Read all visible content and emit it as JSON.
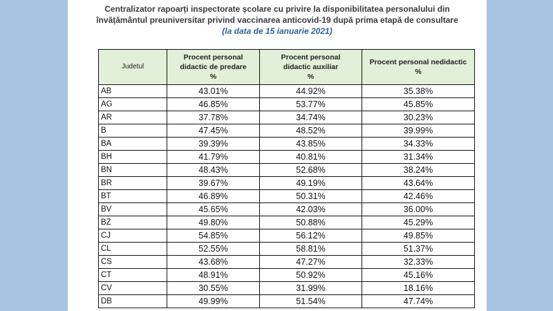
{
  "document": {
    "title_line1": "Centralizator rapoarți inspectorate școlare cu privire la disponibilitatea personalului din",
    "title_line2": "învățământul preuniversitar privind vaccinarea anticovid-19 după prima etapă de consultare",
    "date_line": "(la data de 15 ianuarie 2021)"
  },
  "table": {
    "headers": {
      "judet": "Judetul",
      "col1": [
        "Procent personal",
        "didactic de predare",
        "%"
      ],
      "col2": [
        "Procent personal",
        "didactic auxiliar",
        "%"
      ],
      "col3": [
        "Procent personal nedidactic",
        "%"
      ]
    },
    "rows": [
      {
        "judet": "AB",
        "predare": "43.01%",
        "auxiliar": "44.92%",
        "nedidactic": "35.38%"
      },
      {
        "judet": "AG",
        "predare": "46.85%",
        "auxiliar": "53.77%",
        "nedidactic": "45.85%"
      },
      {
        "judet": "AR",
        "predare": "37.78%",
        "auxiliar": "34.74%",
        "nedidactic": "30.23%"
      },
      {
        "judet": "B",
        "predare": "47.45%",
        "auxiliar": "48.52%",
        "nedidactic": "39.99%"
      },
      {
        "judet": "BA",
        "predare": "39.39%",
        "auxiliar": "43.85%",
        "nedidactic": "34.33%"
      },
      {
        "judet": "BH",
        "predare": "41.79%",
        "auxiliar": "40.81%",
        "nedidactic": "31.34%"
      },
      {
        "judet": "BN",
        "predare": "48.43%",
        "auxiliar": "52.68%",
        "nedidactic": "38.24%"
      },
      {
        "judet": "BR",
        "predare": "39.67%",
        "auxiliar": "49.19%",
        "nedidactic": "43.64%"
      },
      {
        "judet": "BT",
        "predare": "46.89%",
        "auxiliar": "50.31%",
        "nedidactic": "42.46%"
      },
      {
        "judet": "BV",
        "predare": "45.65%",
        "auxiliar": "42.03%",
        "nedidactic": "36.00%"
      },
      {
        "judet": "BZ",
        "predare": "49.80%",
        "auxiliar": "50.88%",
        "nedidactic": "45.29%"
      },
      {
        "judet": "CJ",
        "predare": "54.85%",
        "auxiliar": "56.12%",
        "nedidactic": "49.85%"
      },
      {
        "judet": "CL",
        "predare": "52.55%",
        "auxiliar": "58.81%",
        "nedidactic": "51.37%"
      },
      {
        "judet": "CS",
        "predare": "43.68%",
        "auxiliar": "47.27%",
        "nedidactic": "32.33%"
      },
      {
        "judet": "CT",
        "predare": "48.91%",
        "auxiliar": "50.92%",
        "nedidactic": "45.16%"
      },
      {
        "judet": "CV",
        "predare": "30.55%",
        "auxiliar": "31.99%",
        "nedidactic": "18.16%"
      },
      {
        "judet": "DB",
        "predare": "49.99%",
        "auxiliar": "51.54%",
        "nedidactic": "47.74%"
      }
    ]
  }
}
